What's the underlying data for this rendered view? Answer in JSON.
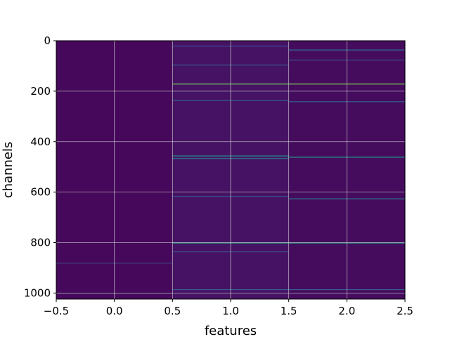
{
  "chart_data": {
    "type": "heatmap",
    "colormap": "viridis",
    "colormap_stops": [
      "#440154",
      "#482878",
      "#3e4989",
      "#31688e",
      "#26828e",
      "#1f9e89",
      "#35b779",
      "#6ece58",
      "#b5de2b",
      "#fde725"
    ],
    "xlabel": "features",
    "ylabel": "channels",
    "xlim": [
      -0.5,
      2.5
    ],
    "ylim": [
      1024,
      0
    ],
    "x_ticks": [
      -0.5,
      0.0,
      0.5,
      1.0,
      1.5,
      2.0,
      2.5
    ],
    "x_tick_labels": [
      "−0.5",
      "0.0",
      "0.5",
      "1.0",
      "1.5",
      "2.0",
      "2.5"
    ],
    "y_ticks": [
      0,
      200,
      400,
      600,
      800,
      1000
    ],
    "y_tick_labels": [
      "0",
      "200",
      "400",
      "600",
      "800",
      "1000"
    ],
    "grid": true,
    "grid_color": "#d9d9d9",
    "n_channels": 1024,
    "columns": [
      {
        "x": 0,
        "base_value": 0.02,
        "highlights": [
          {
            "channel": 880,
            "value": 0.18
          },
          {
            "channel": 1000,
            "value": 0.1
          }
        ]
      },
      {
        "x": 1,
        "base_value": 0.05,
        "highlights": [
          {
            "channel": 20,
            "value": 0.22
          },
          {
            "channel": 95,
            "value": 0.28
          },
          {
            "channel": 170,
            "value": 0.78
          },
          {
            "channel": 235,
            "value": 0.3
          },
          {
            "channel": 455,
            "value": 0.52
          },
          {
            "channel": 465,
            "value": 0.4
          },
          {
            "channel": 615,
            "value": 0.26
          },
          {
            "channel": 800,
            "value": 0.6
          },
          {
            "channel": 835,
            "value": 0.22
          },
          {
            "channel": 985,
            "value": 0.3
          }
        ]
      },
      {
        "x": 2,
        "base_value": 0.03,
        "highlights": [
          {
            "channel": 35,
            "value": 0.4
          },
          {
            "channel": 75,
            "value": 0.25
          },
          {
            "channel": 170,
            "value": 0.8
          },
          {
            "channel": 240,
            "value": 0.32
          },
          {
            "channel": 460,
            "value": 0.55
          },
          {
            "channel": 625,
            "value": 0.42
          },
          {
            "channel": 800,
            "value": 0.58
          },
          {
            "channel": 985,
            "value": 0.3
          }
        ]
      }
    ]
  }
}
